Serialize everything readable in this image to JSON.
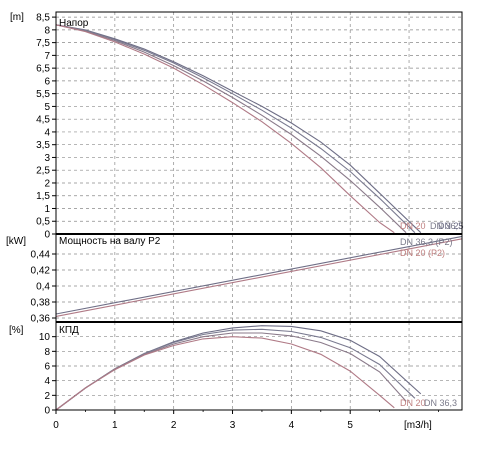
{
  "chart_data": [
    {
      "type": "line",
      "panel": "head",
      "title": "Напор",
      "unit": "[m]",
      "ylim": [
        0,
        8.7
      ],
      "yticks": [
        "0",
        "0,5",
        "1",
        "1,5",
        "2",
        "2,5",
        "3",
        "3,5",
        "4",
        "4,5",
        "5",
        "5,5",
        "6",
        "6,5",
        "7",
        "7,5",
        "8",
        "8,5"
      ],
      "series": [
        {
          "name": "DN 25",
          "color": "#6e6e86",
          "x": [
            0,
            0.5,
            1,
            1.5,
            2,
            2.5,
            3,
            3.5,
            4,
            4.5,
            5,
            5.5,
            6.2
          ],
          "y": [
            8.2,
            8.0,
            7.65,
            7.25,
            6.75,
            6.2,
            5.6,
            5.0,
            4.35,
            3.6,
            2.7,
            1.6,
            0.05
          ]
        },
        {
          "name": "DN 32",
          "color": "#7a7a90",
          "x": [
            0,
            0.5,
            1,
            1.5,
            2,
            2.5,
            3,
            3.5,
            4,
            4.5,
            5,
            5.5,
            6.1
          ],
          "y": [
            8.2,
            7.98,
            7.62,
            7.2,
            6.7,
            6.12,
            5.5,
            4.85,
            4.15,
            3.35,
            2.45,
            1.4,
            0.05
          ]
        },
        {
          "name": "DN 36,3",
          "color": "#8a7a8a",
          "x": [
            0,
            0.5,
            1,
            1.5,
            2,
            2.5,
            3,
            3.5,
            4,
            4.5,
            5,
            5.5,
            5.95
          ],
          "y": [
            8.2,
            7.95,
            7.58,
            7.13,
            6.6,
            6.0,
            5.35,
            4.65,
            3.9,
            3.05,
            2.1,
            1.05,
            0.05
          ]
        },
        {
          "name": "DN 20",
          "color": "#b07a86",
          "x": [
            0,
            0.5,
            1,
            1.5,
            2,
            2.5,
            3,
            3.5,
            4,
            4.5,
            5,
            5.5,
            5.75
          ],
          "y": [
            8.2,
            7.93,
            7.53,
            7.05,
            6.5,
            5.85,
            5.15,
            4.4,
            3.55,
            2.6,
            1.5,
            0.45,
            0.05
          ]
        }
      ],
      "labels": [
        "DN 20",
        "DN 36,3",
        "DN 25"
      ]
    },
    {
      "type": "line",
      "panel": "power",
      "title": "Мощность на валу P2",
      "unit": "[kW]",
      "ylim": [
        0.355,
        0.465
      ],
      "yticks": [
        "0,36",
        "0,38",
        "0,4",
        "0,42",
        "0,44"
      ],
      "series": [
        {
          "name": "DN 36,3 (P2)",
          "color": "#6e6e86",
          "x": [
            0,
            6.9
          ],
          "y": [
            0.365,
            0.462
          ]
        },
        {
          "name": "DN 20 (P2)",
          "color": "#b07a86",
          "x": [
            0,
            6.9
          ],
          "y": [
            0.362,
            0.459
          ]
        }
      ],
      "labels": [
        "DN 36,3 (P2)",
        "DN 20 (P2)"
      ]
    },
    {
      "type": "line",
      "panel": "efficiency",
      "title": "КПД",
      "unit": "[%]",
      "ylim": [
        0,
        12
      ],
      "yticks": [
        "0",
        "2",
        "4",
        "6",
        "8",
        "10"
      ],
      "xlabel": "[m3/h]",
      "xlim": [
        0,
        6.9
      ],
      "xticks": [
        "0",
        "1",
        "2",
        "3",
        "4",
        "5"
      ],
      "series": [
        {
          "name": "DN 25",
          "color": "#6e6e86",
          "x": [
            0,
            0.5,
            1,
            1.5,
            2,
            2.5,
            3,
            3.5,
            4,
            4.5,
            5,
            5.5,
            6.2
          ],
          "y": [
            0,
            3.0,
            5.6,
            7.7,
            9.3,
            10.5,
            11.2,
            11.5,
            11.4,
            10.8,
            9.5,
            7.3,
            2.2
          ]
        },
        {
          "name": "DN 32",
          "color": "#7a7a90",
          "x": [
            0,
            0.5,
            1,
            1.5,
            2,
            2.5,
            3,
            3.5,
            4,
            4.5,
            5,
            5.5,
            6.1
          ],
          "y": [
            0,
            3.0,
            5.6,
            7.7,
            9.2,
            10.3,
            10.9,
            11.0,
            10.7,
            9.9,
            8.5,
            6.2,
            1.6
          ]
        },
        {
          "name": "DN 36,3",
          "color": "#8a7a8a",
          "x": [
            0,
            0.5,
            1,
            1.5,
            2,
            2.5,
            3,
            3.5,
            4,
            4.5,
            5,
            5.5,
            5.95
          ],
          "y": [
            0,
            3.0,
            5.6,
            7.6,
            9.0,
            10.0,
            10.5,
            10.5,
            10.1,
            9.2,
            7.7,
            5.2,
            1.2
          ]
        },
        {
          "name": "DN 20",
          "color": "#b07a86",
          "x": [
            0,
            0.5,
            1,
            1.5,
            2,
            2.5,
            3,
            3.5,
            4,
            4.5,
            5,
            5.5,
            5.75
          ],
          "y": [
            0,
            3.0,
            5.5,
            7.5,
            8.8,
            9.7,
            10.0,
            9.8,
            9.0,
            7.6,
            5.3,
            2.0,
            0.3
          ]
        }
      ],
      "labels": [
        "DN 20",
        "DN 36,3"
      ]
    }
  ]
}
